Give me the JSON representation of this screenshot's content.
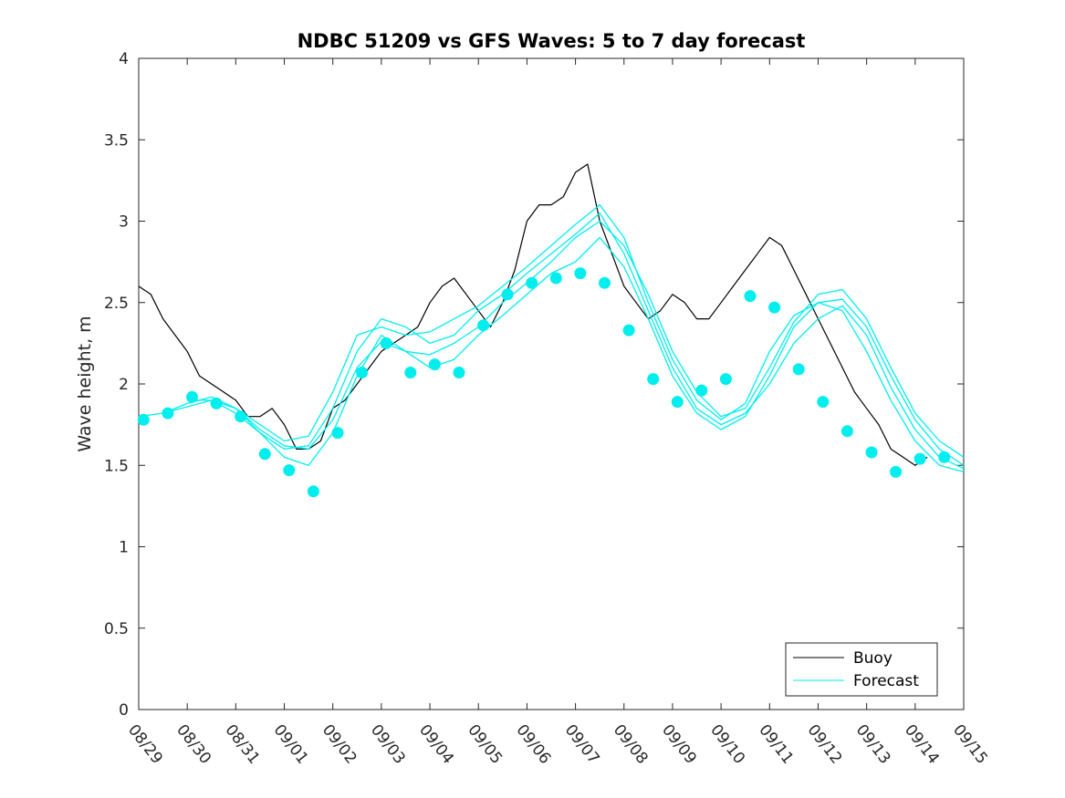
{
  "chart_data": {
    "type": "line",
    "title": "NDBC 51209 vs GFS Waves: 5 to 7 day forecast",
    "xlabel": "",
    "ylabel": "Wave height, m",
    "x_unit": "days since 08/29 00:00",
    "xlim": [
      0,
      17
    ],
    "ylim": [
      0,
      4
    ],
    "xticks": [
      0,
      1,
      2,
      3,
      4,
      5,
      6,
      7,
      8,
      9,
      10,
      11,
      12,
      13,
      14,
      15,
      16,
      17
    ],
    "xtick_labels": [
      "08/29",
      "08/30",
      "08/31",
      "09/01",
      "09/02",
      "09/03",
      "09/04",
      "09/05",
      "09/06",
      "09/07",
      "09/08",
      "09/09",
      "09/10",
      "09/11",
      "09/12",
      "09/13",
      "09/14",
      "09/15"
    ],
    "yticks": [
      0,
      0.5,
      1,
      1.5,
      2,
      2.5,
      3,
      3.5,
      4
    ],
    "ytick_labels": [
      "0",
      "0.5",
      "1",
      "1.5",
      "2",
      "2.5",
      "3",
      "3.5",
      "4"
    ],
    "legend": {
      "position": "bottom-right",
      "entries": [
        "Buoy",
        "Forecast"
      ]
    },
    "colors": {
      "buoy": "#000000",
      "forecast": "#00eeee",
      "axis": "#262626"
    },
    "series": [
      {
        "name": "Buoy",
        "color": "#000000",
        "x": [
          0,
          0.25,
          0.5,
          0.75,
          1,
          1.25,
          1.5,
          1.75,
          2,
          2.25,
          2.5,
          2.75,
          3,
          3.25,
          3.5,
          3.75,
          4,
          4.25,
          4.5,
          4.75,
          5,
          5.25,
          5.5,
          5.75,
          6,
          6.25,
          6.5,
          6.75,
          7,
          7.25,
          7.5,
          7.75,
          8,
          8.25,
          8.5,
          8.75,
          9,
          9.25,
          9.5,
          9.75,
          10,
          10.25,
          10.5,
          10.75,
          11,
          11.25,
          11.5,
          11.75,
          12,
          12.25,
          12.5,
          12.75,
          13,
          13.25,
          13.5,
          13.75,
          14,
          14.25,
          14.5,
          14.75,
          15,
          15.25,
          15.5,
          15.75,
          16,
          16.25
        ],
        "y": [
          2.6,
          2.55,
          2.4,
          2.3,
          2.2,
          2.05,
          2.0,
          1.95,
          1.9,
          1.8,
          1.8,
          1.85,
          1.75,
          1.6,
          1.6,
          1.65,
          1.85,
          1.9,
          2.0,
          2.1,
          2.2,
          2.25,
          2.3,
          2.35,
          2.5,
          2.6,
          2.65,
          2.55,
          2.45,
          2.35,
          2.5,
          2.7,
          3.0,
          3.1,
          3.1,
          3.15,
          3.3,
          3.35,
          3.0,
          2.8,
          2.6,
          2.5,
          2.4,
          2.45,
          2.55,
          2.5,
          2.4,
          2.4,
          2.5,
          2.6,
          2.7,
          2.8,
          2.9,
          2.85,
          2.7,
          2.55,
          2.4,
          2.25,
          2.1,
          1.95,
          1.85,
          1.75,
          1.6,
          1.55,
          1.5,
          1.55
        ]
      },
      {
        "name": "Forecast run 1",
        "color": "#00eeee",
        "x": [
          0,
          0.5,
          1,
          1.5,
          2,
          2.5,
          3,
          3.5,
          4,
          4.5,
          5,
          5.5,
          6,
          6.5,
          7,
          7.5,
          8,
          8.5,
          9,
          9.5,
          10,
          10.5,
          11,
          11.5,
          12,
          12.5,
          13,
          13.5,
          14,
          14.5,
          15,
          15.5,
          16,
          16.5,
          17
        ],
        "y": [
          1.8,
          1.82,
          1.86,
          1.9,
          1.85,
          1.72,
          1.62,
          1.6,
          1.78,
          2.1,
          2.26,
          2.2,
          2.18,
          2.25,
          2.35,
          2.5,
          2.62,
          2.75,
          2.9,
          3.0,
          2.85,
          2.55,
          2.2,
          1.95,
          1.8,
          1.85,
          2.1,
          2.38,
          2.55,
          2.58,
          2.4,
          2.1,
          1.82,
          1.65,
          1.55
        ]
      },
      {
        "name": "Forecast run 2",
        "color": "#00eeee",
        "x": [
          0.5,
          1,
          1.5,
          2,
          2.5,
          3,
          3.5,
          4,
          4.5,
          5,
          5.5,
          6,
          6.5,
          7,
          7.5,
          8,
          8.5,
          9,
          9.5,
          10,
          10.5,
          11,
          11.5,
          12,
          12.5,
          13,
          13.5,
          14,
          14.5,
          15,
          15.5,
          16,
          16.5,
          17
        ],
        "y": [
          1.82,
          1.88,
          1.92,
          1.85,
          1.75,
          1.65,
          1.68,
          1.95,
          2.3,
          2.35,
          2.3,
          2.32,
          2.4,
          2.48,
          2.6,
          2.72,
          2.85,
          2.98,
          3.1,
          2.9,
          2.5,
          2.15,
          1.9,
          1.78,
          1.88,
          2.2,
          2.42,
          2.5,
          2.52,
          2.35,
          2.05,
          1.78,
          1.6,
          1.5
        ]
      },
      {
        "name": "Forecast run 3",
        "color": "#00eeee",
        "x": [
          1,
          1.5,
          2,
          2.5,
          3,
          3.5,
          4,
          4.5,
          5,
          5.5,
          6,
          6.5,
          7,
          7.5,
          8,
          8.5,
          9,
          9.5,
          10,
          10.5,
          11,
          11.5,
          12,
          12.5,
          13,
          13.5,
          14,
          14.5,
          15,
          15.5,
          16,
          16.5,
          17
        ],
        "y": [
          1.9,
          1.9,
          1.82,
          1.7,
          1.6,
          1.62,
          1.85,
          2.2,
          2.4,
          2.35,
          2.25,
          2.3,
          2.45,
          2.55,
          2.68,
          2.8,
          2.92,
          3.05,
          2.8,
          2.45,
          2.1,
          1.85,
          1.75,
          1.82,
          2.0,
          2.25,
          2.4,
          2.48,
          2.3,
          1.98,
          1.72,
          1.55,
          1.48
        ]
      },
      {
        "name": "Forecast run 4",
        "color": "#00eeee",
        "x": [
          1.5,
          2,
          2.5,
          3,
          3.5,
          4,
          4.5,
          5,
          5.5,
          6,
          6.5,
          7,
          7.5,
          8,
          8.5,
          9,
          9.5,
          10,
          10.5,
          11,
          11.5,
          12,
          12.5,
          13,
          13.5,
          14,
          14.5,
          15,
          15.5,
          16,
          16.5,
          17
        ],
        "y": [
          1.92,
          1.85,
          1.7,
          1.55,
          1.5,
          1.7,
          2.05,
          2.3,
          2.2,
          2.1,
          2.15,
          2.3,
          2.42,
          2.55,
          2.68,
          2.75,
          2.9,
          2.72,
          2.4,
          2.05,
          1.82,
          1.72,
          1.8,
          2.05,
          2.35,
          2.5,
          2.45,
          2.2,
          1.9,
          1.65,
          1.5,
          1.46
        ]
      }
    ],
    "forecast_markers": {
      "color": "#00eeee",
      "x": [
        0.1,
        0.6,
        1.1,
        1.6,
        2.1,
        2.6,
        3.1,
        3.6,
        4.1,
        4.6,
        5.1,
        5.6,
        6.1,
        6.6,
        7.1,
        7.6,
        8.1,
        8.6,
        9.1,
        9.6,
        10.1,
        10.6,
        11.1,
        11.6,
        12.1,
        12.6,
        13.1,
        13.6,
        14.1,
        14.6,
        15.1,
        15.6,
        16.1,
        16.6
      ],
      "y": [
        1.78,
        1.82,
        1.92,
        1.88,
        1.8,
        1.57,
        1.47,
        1.34,
        1.7,
        2.07,
        2.25,
        2.07,
        2.12,
        2.07,
        2.36,
        2.55,
        2.62,
        2.65,
        2.68,
        2.62,
        2.33,
        2.03,
        1.89,
        1.96,
        2.03,
        2.54,
        2.47,
        2.09,
        1.89,
        1.71,
        1.58,
        1.46,
        1.54,
        1.55
      ]
    }
  }
}
